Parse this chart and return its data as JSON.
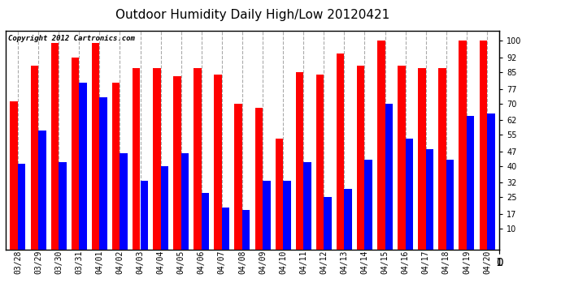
{
  "title": "Outdoor Humidity Daily High/Low 20120421",
  "copyright": "Copyright 2012 Cartronics.com",
  "dates": [
    "03/28",
    "03/29",
    "03/30",
    "03/31",
    "04/01",
    "04/02",
    "04/03",
    "04/04",
    "04/05",
    "04/06",
    "04/07",
    "04/08",
    "04/09",
    "04/10",
    "04/11",
    "04/12",
    "04/13",
    "04/14",
    "04/15",
    "04/16",
    "04/17",
    "04/18",
    "04/19",
    "04/20"
  ],
  "highs": [
    71,
    88,
    99,
    92,
    99,
    80,
    87,
    87,
    83,
    87,
    84,
    70,
    68,
    53,
    85,
    84,
    94,
    88,
    100,
    88,
    87,
    87,
    100,
    100
  ],
  "lows": [
    41,
    57,
    42,
    80,
    73,
    46,
    33,
    40,
    46,
    27,
    20,
    19,
    33,
    33,
    42,
    25,
    29,
    43,
    70,
    53,
    48,
    43,
    64,
    65
  ],
  "high_color": "#ff0000",
  "low_color": "#0000ff",
  "bg_color": "#ffffff",
  "grid_color": "#aaaaaa",
  "yticks": [
    10,
    17,
    25,
    32,
    40,
    47,
    55,
    62,
    70,
    77,
    85,
    92,
    100
  ],
  "ylim": [
    0,
    105
  ],
  "bar_width": 0.38,
  "title_fontsize": 11,
  "tick_fontsize": 7,
  "copyright_fontsize": 6.5
}
